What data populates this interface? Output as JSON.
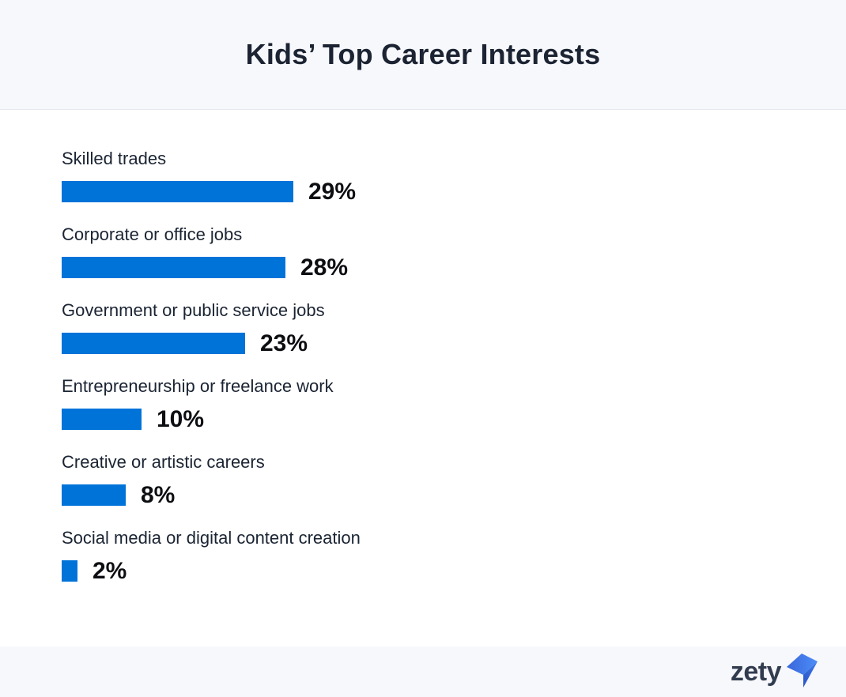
{
  "header": {
    "title": "Kids’ Top Career Interests"
  },
  "chart_data": {
    "type": "bar",
    "orientation": "horizontal",
    "title": "Kids’ Top Career Interests",
    "categories": [
      "Skilled trades",
      "Corporate or office jobs",
      "Government or public service jobs",
      "Entrepreneurship or freelance work",
      "Creative or artistic careers",
      "Social media or digital content creation"
    ],
    "values": [
      29,
      28,
      23,
      10,
      8,
      2
    ],
    "unit": "%",
    "value_labels": [
      "29%",
      "28%",
      "23%",
      "10%",
      "8%",
      "2%"
    ],
    "xlim": [
      0,
      100
    ],
    "grid": false,
    "legend": false,
    "bar_color": "#0073d9"
  },
  "footer": {
    "logo_text": "zety",
    "logo_icon": "zety-flag-icon",
    "logo_text_color": "#323c4f",
    "logo_icon_colors": [
      "#3a66da",
      "#4c8ef8",
      "#2c5fd2"
    ]
  },
  "colors": {
    "header_bg": "#f7f8fc",
    "footer_bg": "#f7f8fc",
    "main_bg": "#ffffff",
    "header_border": "#e6e8ef",
    "label_text": "#1b2433",
    "value_text": "#0c0e12"
  }
}
